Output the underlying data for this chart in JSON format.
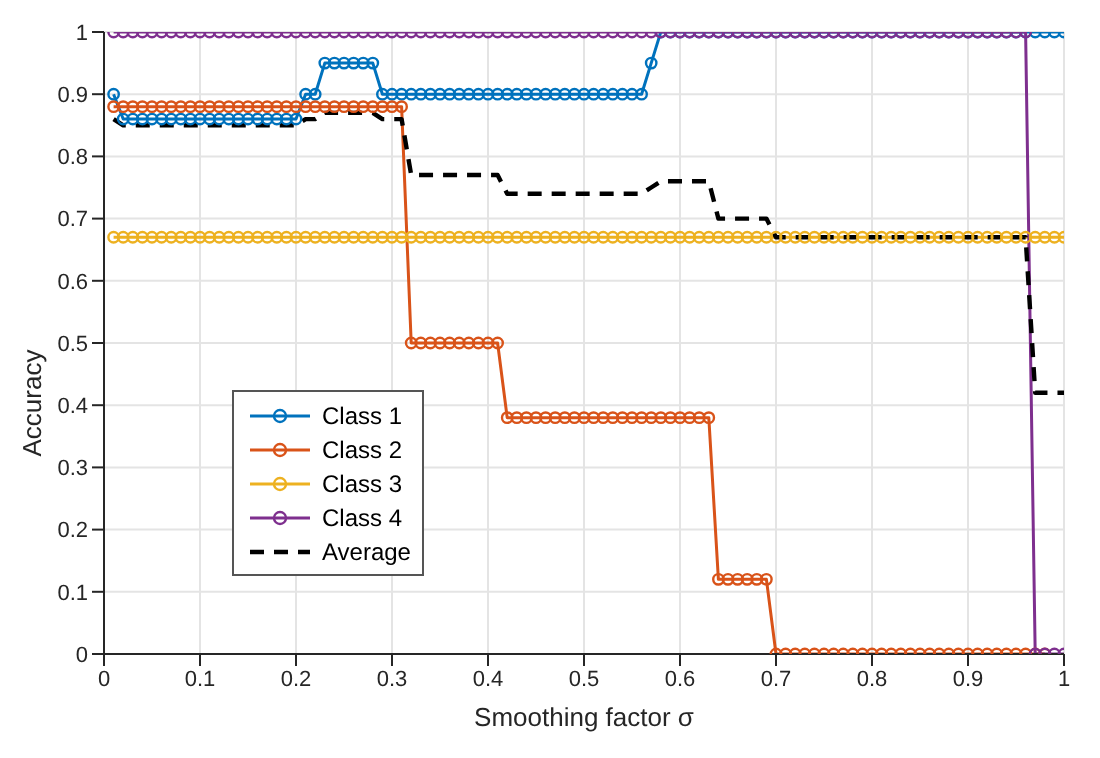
{
  "chart_data": {
    "type": "line",
    "xlabel": "Smoothing factor σ",
    "ylabel": "Accuracy",
    "x": [
      0.01,
      0.02,
      0.03,
      0.04,
      0.05,
      0.06,
      0.07,
      0.08,
      0.09,
      0.1,
      0.11,
      0.12,
      0.13,
      0.14,
      0.15,
      0.16,
      0.17,
      0.18,
      0.19,
      0.2,
      0.21,
      0.22,
      0.23,
      0.24,
      0.25,
      0.26,
      0.27,
      0.28,
      0.29,
      0.3,
      0.31,
      0.32,
      0.33,
      0.34,
      0.35,
      0.36,
      0.37,
      0.38,
      0.39,
      0.4,
      0.41,
      0.42,
      0.43,
      0.44,
      0.45,
      0.46,
      0.47,
      0.48,
      0.49,
      0.5,
      0.51,
      0.52,
      0.53,
      0.54,
      0.55,
      0.56,
      0.57,
      0.58,
      0.59,
      0.6,
      0.61,
      0.62,
      0.63,
      0.64,
      0.65,
      0.66,
      0.67,
      0.68,
      0.69,
      0.7,
      0.71,
      0.72,
      0.73,
      0.74,
      0.75,
      0.76,
      0.77,
      0.78,
      0.79,
      0.8,
      0.81,
      0.82,
      0.83,
      0.84,
      0.85,
      0.86,
      0.87,
      0.88,
      0.89,
      0.9,
      0.91,
      0.92,
      0.93,
      0.94,
      0.95,
      0.96,
      0.97,
      0.98,
      0.99,
      1.0
    ],
    "series": [
      {
        "name": "Class 1",
        "color": "#0072bd",
        "values": [
          0.9,
          0.86,
          0.86,
          0.86,
          0.86,
          0.86,
          0.86,
          0.86,
          0.86,
          0.86,
          0.86,
          0.86,
          0.86,
          0.86,
          0.86,
          0.86,
          0.86,
          0.86,
          0.86,
          0.86,
          0.9,
          0.9,
          0.95,
          0.95,
          0.95,
          0.95,
          0.95,
          0.95,
          0.9,
          0.9,
          0.9,
          0.9,
          0.9,
          0.9,
          0.9,
          0.9,
          0.9,
          0.9,
          0.9,
          0.9,
          0.9,
          0.9,
          0.9,
          0.9,
          0.9,
          0.9,
          0.9,
          0.9,
          0.9,
          0.9,
          0.9,
          0.9,
          0.9,
          0.9,
          0.9,
          0.9,
          0.95,
          1,
          1,
          1,
          1,
          1,
          1,
          1,
          1,
          1,
          1,
          1,
          1,
          1,
          1,
          1,
          1,
          1,
          1,
          1,
          1,
          1,
          1,
          1,
          1,
          1,
          1,
          1,
          1,
          1,
          1,
          1,
          1,
          1,
          1,
          1,
          1,
          1,
          1,
          1,
          1,
          1,
          1,
          1
        ]
      },
      {
        "name": "Class 2",
        "color": "#d95319",
        "values": [
          0.88,
          0.88,
          0.88,
          0.88,
          0.88,
          0.88,
          0.88,
          0.88,
          0.88,
          0.88,
          0.88,
          0.88,
          0.88,
          0.88,
          0.88,
          0.88,
          0.88,
          0.88,
          0.88,
          0.88,
          0.88,
          0.88,
          0.88,
          0.88,
          0.88,
          0.88,
          0.88,
          0.88,
          0.88,
          0.88,
          0.88,
          0.5,
          0.5,
          0.5,
          0.5,
          0.5,
          0.5,
          0.5,
          0.5,
          0.5,
          0.5,
          0.38,
          0.38,
          0.38,
          0.38,
          0.38,
          0.38,
          0.38,
          0.38,
          0.38,
          0.38,
          0.38,
          0.38,
          0.38,
          0.38,
          0.38,
          0.38,
          0.38,
          0.38,
          0.38,
          0.38,
          0.38,
          0.38,
          0.12,
          0.12,
          0.12,
          0.12,
          0.12,
          0.12,
          0,
          0,
          0,
          0,
          0,
          0,
          0,
          0,
          0,
          0,
          0,
          0,
          0,
          0,
          0,
          0,
          0,
          0,
          0,
          0,
          0,
          0,
          0,
          0,
          0,
          0,
          0,
          0,
          0,
          null,
          null
        ]
      },
      {
        "name": "Class 3",
        "color": "#edb120",
        "values": [
          0.67,
          0.67,
          0.67,
          0.67,
          0.67,
          0.67,
          0.67,
          0.67,
          0.67,
          0.67,
          0.67,
          0.67,
          0.67,
          0.67,
          0.67,
          0.67,
          0.67,
          0.67,
          0.67,
          0.67,
          0.67,
          0.67,
          0.67,
          0.67,
          0.67,
          0.67,
          0.67,
          0.67,
          0.67,
          0.67,
          0.67,
          0.67,
          0.67,
          0.67,
          0.67,
          0.67,
          0.67,
          0.67,
          0.67,
          0.67,
          0.67,
          0.67,
          0.67,
          0.67,
          0.67,
          0.67,
          0.67,
          0.67,
          0.67,
          0.67,
          0.67,
          0.67,
          0.67,
          0.67,
          0.67,
          0.67,
          0.67,
          0.67,
          0.67,
          0.67,
          0.67,
          0.67,
          0.67,
          0.67,
          0.67,
          0.67,
          0.67,
          0.67,
          0.67,
          0.67,
          0.67,
          0.67,
          0.67,
          0.67,
          0.67,
          0.67,
          0.67,
          0.67,
          0.67,
          0.67,
          0.67,
          0.67,
          0.67,
          0.67,
          0.67,
          0.67,
          0.67,
          0.67,
          0.67,
          0.67,
          0.67,
          0.67,
          0.67,
          0.67,
          0.67,
          0.67,
          0.67,
          0.67,
          0.67,
          0.67
        ]
      },
      {
        "name": "Class 4",
        "color": "#7e2f8e",
        "values": [
          1,
          1,
          1,
          1,
          1,
          1,
          1,
          1,
          1,
          1,
          1,
          1,
          1,
          1,
          1,
          1,
          1,
          1,
          1,
          1,
          1,
          1,
          1,
          1,
          1,
          1,
          1,
          1,
          1,
          1,
          1,
          1,
          1,
          1,
          1,
          1,
          1,
          1,
          1,
          1,
          1,
          1,
          1,
          1,
          1,
          1,
          1,
          1,
          1,
          1,
          1,
          1,
          1,
          1,
          1,
          1,
          1,
          1,
          1,
          1,
          1,
          1,
          1,
          1,
          1,
          1,
          1,
          1,
          1,
          1,
          1,
          1,
          1,
          1,
          1,
          1,
          1,
          1,
          1,
          1,
          1,
          1,
          1,
          1,
          1,
          1,
          1,
          1,
          1,
          1,
          1,
          1,
          1,
          1,
          1,
          1,
          0,
          0,
          0,
          0
        ]
      },
      {
        "name": "Average",
        "color": "#000000",
        "marker": "none",
        "line_style": "dashed",
        "values": [
          0.86,
          0.85,
          0.85,
          0.85,
          0.85,
          0.85,
          0.85,
          0.85,
          0.85,
          0.85,
          0.85,
          0.85,
          0.85,
          0.85,
          0.85,
          0.85,
          0.85,
          0.85,
          0.85,
          0.85,
          0.86,
          0.86,
          0.87,
          0.87,
          0.87,
          0.87,
          0.87,
          0.87,
          0.86,
          0.86,
          0.86,
          0.77,
          0.77,
          0.77,
          0.77,
          0.77,
          0.77,
          0.77,
          0.77,
          0.77,
          0.77,
          0.74,
          0.74,
          0.74,
          0.74,
          0.74,
          0.74,
          0.74,
          0.74,
          0.74,
          0.74,
          0.74,
          0.74,
          0.74,
          0.74,
          0.74,
          0.75,
          0.76,
          0.76,
          0.76,
          0.76,
          0.76,
          0.76,
          0.7,
          0.7,
          0.7,
          0.7,
          0.7,
          0.7,
          0.67,
          0.67,
          0.67,
          0.67,
          0.67,
          0.67,
          0.67,
          0.67,
          0.67,
          0.67,
          0.67,
          0.67,
          0.67,
          0.67,
          0.67,
          0.67,
          0.67,
          0.67,
          0.67,
          0.67,
          0.67,
          0.67,
          0.67,
          0.67,
          0.67,
          0.67,
          0.67,
          0.42,
          0.42,
          0.42,
          0.42
        ]
      }
    ],
    "xlim": [
      0,
      1
    ],
    "xticks": [
      0,
      0.1,
      0.2,
      0.3,
      0.4,
      0.5,
      0.6,
      0.7,
      0.8,
      0.9,
      1
    ],
    "ylim": [
      0,
      1
    ],
    "yticks": [
      0,
      0.1,
      0.2,
      0.3,
      0.4,
      0.5,
      0.6,
      0.7,
      0.8,
      0.9,
      1
    ],
    "grid": true,
    "legend": "bottom left",
    "marker": "circle",
    "line_style": "solid"
  }
}
